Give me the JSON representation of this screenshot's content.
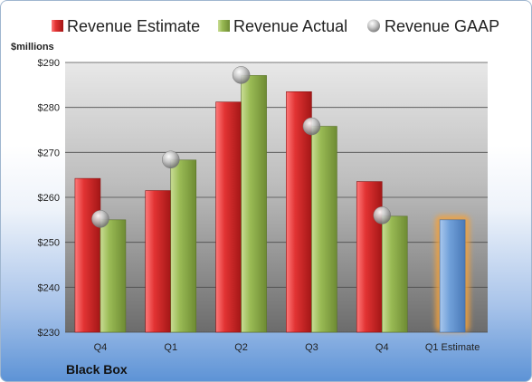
{
  "company": "Black Box",
  "colors": {
    "estimate": "#d42727",
    "actual": "#8fb04a",
    "gaap": "#b5b5b5",
    "next_estimate": "#6f9fd8",
    "next_estimate_glow": "#f2a23c"
  },
  "chart_data": {
    "type": "bar",
    "ylabel": "$millions",
    "ylim": [
      230,
      290
    ],
    "yticks": [
      "$230",
      "$240",
      "$250",
      "$260",
      "$270",
      "$280",
      "$290"
    ],
    "categories": [
      "Q4",
      "Q1",
      "Q2",
      "Q3",
      "Q4",
      "Q1 Estimate"
    ],
    "series": [
      {
        "name": "Revenue Estimate",
        "marker": "bar",
        "values": [
          264.2,
          261.5,
          281.2,
          283.5,
          263.5,
          null
        ]
      },
      {
        "name": "Revenue Actual",
        "marker": "bar",
        "values": [
          255.0,
          268.3,
          287.1,
          275.8,
          255.8,
          null
        ]
      },
      {
        "name": "Revenue GAAP",
        "marker": "bubble",
        "values": [
          255.2,
          268.4,
          287.2,
          275.8,
          256.0,
          null
        ]
      }
    ],
    "next_estimate": {
      "category": "Q1 Estimate",
      "value": 255.0
    },
    "grid": true,
    "legend": "top"
  }
}
